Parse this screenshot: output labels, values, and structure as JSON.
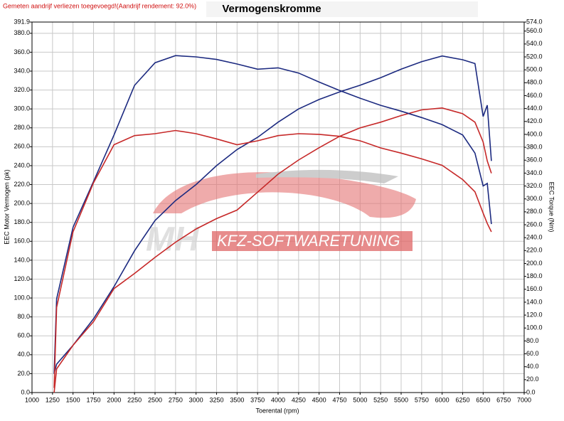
{
  "note_text": "Gemeten aandrijf verliezen toegevoegd!(Aandrijf rendement: 92.0%)",
  "watermark": {
    "brand": "MH",
    "text": "KFZ-SOFTWARETUNING"
  },
  "chart_data": {
    "type": "line",
    "title": "Vermogenskromme",
    "xlabel": "Toerental (rpm)",
    "ylabel": "EEC Motor Vermogen (pk)",
    "y2label": "EEC Torque (Nm)",
    "grid": true,
    "x": [
      1270,
      1300,
      1500,
      1750,
      2000,
      2250,
      2500,
      2750,
      3000,
      3250,
      3500,
      3750,
      4000,
      4250,
      4500,
      4750,
      5000,
      5250,
      5500,
      5750,
      6000,
      6250,
      6400,
      6500,
      6550,
      6600
    ],
    "series": [
      {
        "color": "#1c2a80",
        "values": [
          20,
          30,
          50,
          78,
          112,
          150,
          182,
          203,
          220,
          240,
          257,
          270,
          286,
          300,
          310,
          318,
          325,
          333,
          342,
          350,
          356,
          352,
          348,
          292,
          304,
          245
        ]
      },
      {
        "color": "#c62828",
        "values": [
          0,
          25,
          50,
          75,
          110,
          126,
          143,
          159,
          173,
          184,
          193,
          212,
          231,
          246,
          259,
          271,
          280,
          286,
          293,
          299,
          301,
          295,
          286,
          265,
          245,
          232
        ]
      },
      {
        "color": "#1c2a80",
        "axis": "y2",
        "values": [
          29,
          145,
          256,
          327,
          399,
          476,
          511,
          522,
          520,
          516,
          509,
          501,
          503,
          495,
          481,
          468,
          456,
          445,
          436,
          426,
          415,
          399,
          371,
          320,
          324,
          261
        ]
      },
      {
        "color": "#c62828",
        "axis": "y2",
        "values": [
          7,
          132,
          249,
          325,
          384,
          398,
          401,
          406,
          401,
          393,
          384,
          390,
          398,
          401,
          400,
          397,
          390,
          379,
          371,
          362,
          352,
          330,
          311,
          278,
          262,
          249
        ]
      }
    ],
    "xlim": [
      1000,
      7000
    ],
    "xticks": [
      1000,
      1250,
      1500,
      1750,
      2000,
      2250,
      2500,
      2750,
      3000,
      3250,
      3500,
      3750,
      4000,
      4250,
      4500,
      4750,
      5000,
      5250,
      5500,
      5750,
      6000,
      6250,
      6500,
      6750,
      7000
    ],
    "ylim": [
      0,
      391.9
    ],
    "yticks": [
      {
        "value": 0,
        "label": "0.0"
      },
      {
        "value": 20,
        "label": "20.0"
      },
      {
        "value": 40,
        "label": "40.0"
      },
      {
        "value": 60,
        "label": "60.0"
      },
      {
        "value": 80,
        "label": "80.0"
      },
      {
        "value": 100,
        "label": "100.0"
      },
      {
        "value": 120,
        "label": "120.0"
      },
      {
        "value": 140,
        "label": "140.0"
      },
      {
        "value": 160,
        "label": "160.0"
      },
      {
        "value": 180,
        "label": "180.0"
      },
      {
        "value": 200,
        "label": "200.0"
      },
      {
        "value": 220,
        "label": "220.0"
      },
      {
        "value": 240,
        "label": "240.0"
      },
      {
        "value": 260,
        "label": "260.0"
      },
      {
        "value": 280,
        "label": "280.0"
      },
      {
        "value": 300,
        "label": "300.0"
      },
      {
        "value": 320,
        "label": "320.0"
      },
      {
        "value": 340,
        "label": "340.0"
      },
      {
        "value": 360,
        "label": "360.0"
      },
      {
        "value": 380,
        "label": "380.0"
      },
      391.9
    ],
    "y2lim": [
      0,
      574
    ],
    "y2ticks": [
      {
        "value": 0,
        "label": "0.0"
      },
      {
        "value": 20,
        "label": "20.0"
      },
      {
        "value": 40,
        "label": "40.0"
      },
      {
        "value": 60,
        "label": "60.0"
      },
      {
        "value": 80,
        "label": "80.0"
      },
      {
        "value": 100,
        "label": "100.0"
      },
      {
        "value": 120,
        "label": "120.0"
      },
      {
        "value": 140,
        "label": "140.0"
      },
      {
        "value": 160,
        "label": "160.0"
      },
      {
        "value": 180,
        "label": "180.0"
      },
      {
        "value": 200,
        "label": "200.0"
      },
      {
        "value": 220,
        "label": "220.0"
      },
      {
        "value": 240,
        "label": "240.0"
      },
      {
        "value": 260,
        "label": "260.0"
      },
      {
        "value": 280,
        "label": "280.0"
      },
      {
        "value": 300,
        "label": "300.0"
      },
      {
        "value": 320,
        "label": "320.0"
      },
      {
        "value": 340,
        "label": "340.0"
      },
      {
        "value": 360,
        "label": "360.0"
      },
      {
        "value": 380,
        "label": "380.0"
      },
      {
        "value": 400,
        "label": "400.0"
      },
      {
        "value": 420,
        "label": "420.0"
      },
      {
        "value": 440,
        "label": "440.0"
      },
      {
        "value": 460,
        "label": "460.0"
      },
      {
        "value": 480,
        "label": "480.0"
      },
      {
        "value": 500,
        "label": "500.0"
      },
      {
        "value": 520,
        "label": "520.0"
      },
      {
        "value": 540,
        "label": "540.0"
      },
      {
        "value": 560,
        "label": "560.0"
      },
      {
        "value": 574,
        "label": "574.0"
      }
    ]
  }
}
